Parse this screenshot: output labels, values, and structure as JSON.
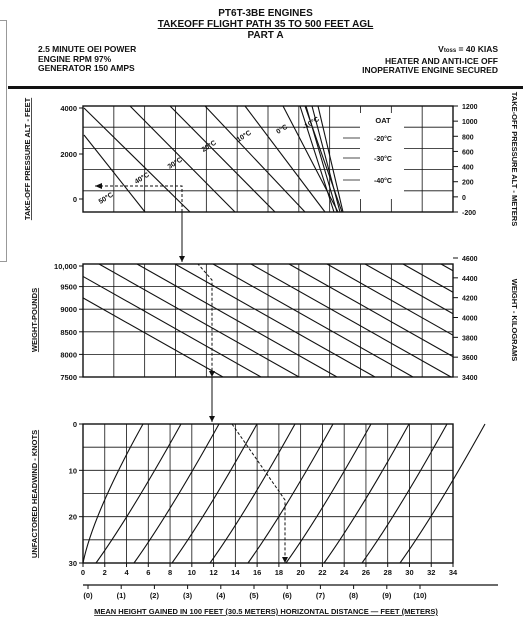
{
  "header": {
    "engines": "PT6T-3BE ENGINES",
    "title": "TAKEOFF FLIGHT PATH 35 TO 500 FEET AGL",
    "part": "PART A"
  },
  "conditions_left": [
    "2.5 MINUTE OEI POWER",
    "ENGINE RPM 97%",
    "GENERATOR 150 AMPS"
  ],
  "conditions_right": {
    "v_label": "V",
    "v_sub": "toss",
    "v_value": "= 40 KIAS",
    "line2": "HEATER AND ANTI-ICE OFF",
    "line3": "INOPERATIVE ENGINE SECURED"
  },
  "chart_data": [
    {
      "type": "line",
      "name": "oat-pressure-altitude",
      "ylabel_left": "TAKE-OFF PRESSURE ALT - FEET",
      "ylabel_right": "TAKE-OFF PRESSURE ALT - METERS",
      "y_ticks_left": [
        "4000",
        "2000",
        "0"
      ],
      "y_ticks_right": [
        "1200",
        "1000",
        "800",
        "600",
        "400",
        "200",
        "0",
        "-200"
      ],
      "legend_title": "OAT",
      "oat_labels": [
        "50°C",
        "40°C",
        "30°C",
        "20°C",
        "10°C",
        "0°C",
        "-10°C"
      ],
      "legend_entries": [
        "-20°C",
        "-30°C",
        "-40°C"
      ]
    },
    {
      "type": "line",
      "name": "weight",
      "ylabel_left": "WEIGHT-POUNDS",
      "ylabel_right": "WEIGHT - KILOGRAMS",
      "y_ticks_left": [
        "10,000",
        "9500",
        "9000",
        "8500",
        "8000",
        "7500"
      ],
      "y_ticks_right": [
        "4600",
        "4400",
        "4200",
        "4000",
        "3800",
        "3600",
        "3400"
      ]
    },
    {
      "type": "line",
      "name": "headwind",
      "ylabel_left": "UNFACTORED HEADWIND - KNOTS",
      "y_ticks_left": [
        "0",
        "10",
        "20",
        "30"
      ],
      "x_ticks": [
        "0",
        "2",
        "4",
        "6",
        "8",
        "10",
        "12",
        "14",
        "16",
        "18",
        "20",
        "22",
        "24",
        "26",
        "28",
        "30",
        "32",
        "34"
      ],
      "x_ticks_meters": [
        "(0)",
        "(1)",
        "(2)",
        "(3)",
        "(4)",
        "(5)",
        "(6)",
        "(7)",
        "(8)",
        "(9)",
        "(10)"
      ],
      "xlabel": "MEAN HEIGHT GAINED IN 100 FEET (30.5 METERS) HORIZONTAL DISTANCE — FEET (METERS)"
    }
  ]
}
